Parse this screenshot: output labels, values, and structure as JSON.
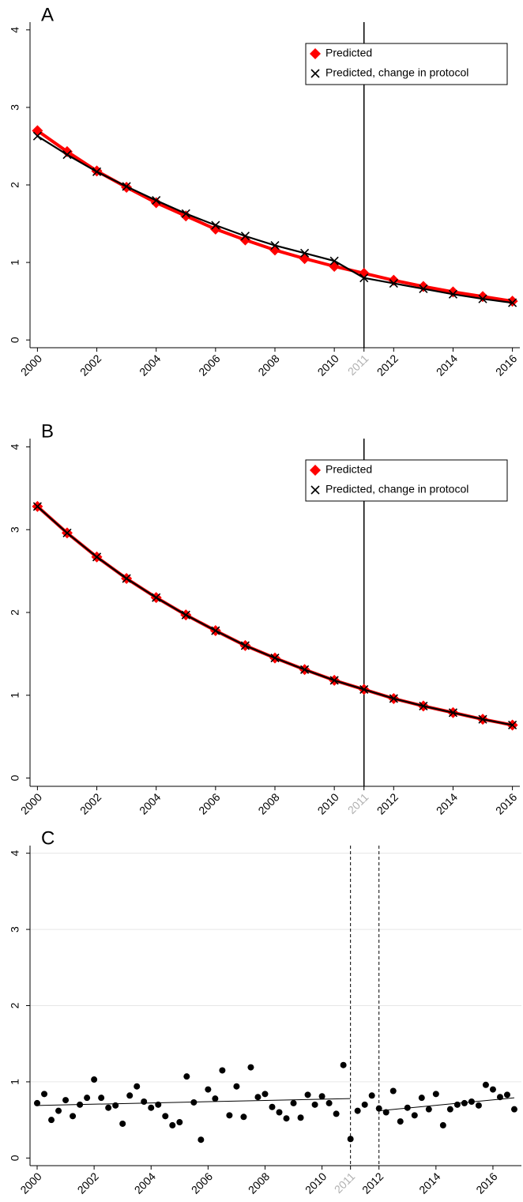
{
  "chart_data": [
    {
      "type": "line",
      "title": "A",
      "x": [
        2000,
        2001,
        2002,
        2003,
        2004,
        2005,
        2006,
        2007,
        2008,
        2009,
        2010,
        2011,
        2012,
        2013,
        2014,
        2015,
        2016
      ],
      "series": [
        {
          "name": "Predicted",
          "color": "#ff0000",
          "marker": "diamond",
          "values": [
            2.7,
            2.43,
            2.18,
            1.97,
            1.77,
            1.6,
            1.43,
            1.29,
            1.16,
            1.05,
            0.95,
            0.86,
            0.77,
            0.69,
            0.62,
            0.56,
            0.5
          ]
        },
        {
          "name": "Predicted, change in protocol",
          "color": "#000000",
          "marker": "x",
          "values": [
            2.63,
            2.39,
            2.17,
            1.98,
            1.8,
            1.63,
            1.48,
            1.34,
            1.22,
            1.12,
            1.02,
            0.8,
            0.73,
            0.66,
            0.59,
            0.53,
            0.48
          ]
        }
      ],
      "xlim": [
        1999.75,
        2016.25
      ],
      "ylim": [
        -0.1,
        4.1
      ],
      "xticks": [
        2000,
        2002,
        2004,
        2006,
        2008,
        2010,
        2011,
        2012,
        2014,
        2016
      ],
      "yticks": [
        0,
        1,
        2,
        3,
        4
      ],
      "faded_xticks": [
        2011
      ],
      "vlines": [
        2011
      ],
      "vline_style": "solid",
      "legend": "top right",
      "grid": false
    },
    {
      "type": "line",
      "title": "B",
      "x": [
        2000,
        2001,
        2002,
        2003,
        2004,
        2005,
        2006,
        2007,
        2008,
        2009,
        2010,
        2011,
        2012,
        2013,
        2014,
        2015,
        2016
      ],
      "series": [
        {
          "name": "Predicted",
          "color": "#ff0000",
          "marker": "diamond",
          "values": [
            3.28,
            2.96,
            2.67,
            2.41,
            2.18,
            1.97,
            1.78,
            1.6,
            1.45,
            1.31,
            1.18,
            1.07,
            0.96,
            0.87,
            0.79,
            0.71,
            0.64
          ]
        },
        {
          "name": "Predicted, change in protocol",
          "color": "#000000",
          "marker": "x",
          "values": [
            3.28,
            2.96,
            2.67,
            2.41,
            2.18,
            1.97,
            1.78,
            1.6,
            1.45,
            1.31,
            1.18,
            1.07,
            0.96,
            0.87,
            0.79,
            0.71,
            0.64
          ]
        }
      ],
      "xlim": [
        1999.75,
        2016.25
      ],
      "ylim": [
        -0.1,
        4.1
      ],
      "xticks": [
        2000,
        2002,
        2004,
        2006,
        2008,
        2010,
        2011,
        2012,
        2014,
        2016
      ],
      "yticks": [
        0,
        1,
        2,
        3,
        4
      ],
      "faded_xticks": [
        2011
      ],
      "vlines": [
        2011
      ],
      "vline_style": "solid",
      "legend": "top right",
      "grid": false
    },
    {
      "type": "scatter",
      "title": "C",
      "x": [
        2000,
        2000.25,
        2000.5,
        2000.75,
        2001,
        2001.25,
        2001.5,
        2001.75,
        2002,
        2002.25,
        2002.5,
        2002.75,
        2003,
        2003.25,
        2003.5,
        2003.75,
        2004,
        2004.25,
        2004.5,
        2004.75,
        2005,
        2005.25,
        2005.5,
        2005.75,
        2006,
        2006.25,
        2006.5,
        2006.75,
        2007,
        2007.25,
        2007.5,
        2007.75,
        2008,
        2008.25,
        2008.5,
        2008.75,
        2009,
        2009.25,
        2009.5,
        2009.75,
        2010,
        2010.25,
        2010.5,
        2010.75,
        2011,
        2011.25,
        2011.5,
        2011.75,
        2012,
        2012.25,
        2012.5,
        2012.75,
        2013,
        2013.25,
        2013.5,
        2013.75,
        2014,
        2014.25,
        2014.5,
        2014.75,
        2015,
        2015.25,
        2015.5,
        2015.75,
        2016,
        2016.25,
        2016.5,
        2016.75
      ],
      "values": [
        0.72,
        0.84,
        0.5,
        0.62,
        0.76,
        0.55,
        0.7,
        0.79,
        1.03,
        0.79,
        0.66,
        0.69,
        0.45,
        0.82,
        0.94,
        0.74,
        0.66,
        0.7,
        0.55,
        0.43,
        0.47,
        1.07,
        0.73,
        0.24,
        0.9,
        0.78,
        1.15,
        0.56,
        0.94,
        0.54,
        1.19,
        0.8,
        0.84,
        0.67,
        0.6,
        0.52,
        0.72,
        0.53,
        0.83,
        0.7,
        0.81,
        0.72,
        0.58,
        1.22,
        0.25,
        0.62,
        0.7,
        0.82,
        0.65,
        0.6,
        0.88,
        0.48,
        0.66,
        0.56,
        0.79,
        0.64,
        0.84,
        0.43,
        0.64,
        0.7,
        0.72,
        0.74,
        0.69,
        0.96,
        0.9,
        0.8,
        0.83,
        0.64
      ],
      "color": "#000000",
      "fits": [
        {
          "x": [
            2000,
            2011
          ],
          "values": [
            0.69,
            0.78
          ]
        },
        {
          "x": [
            2012,
            2016.75
          ],
          "values": [
            0.62,
            0.79
          ]
        }
      ],
      "xlim": [
        1999.75,
        2017.0
      ],
      "ylim": [
        -0.1,
        4.1
      ],
      "xticks": [
        2000,
        2002,
        2004,
        2006,
        2008,
        2010,
        2011,
        2012,
        2014,
        2016
      ],
      "yticks": [
        0,
        1,
        2,
        3,
        4
      ],
      "faded_xticks": [
        2011
      ],
      "vlines": [
        2011,
        2012
      ],
      "vline_style": "dashed",
      "grid": true
    }
  ]
}
